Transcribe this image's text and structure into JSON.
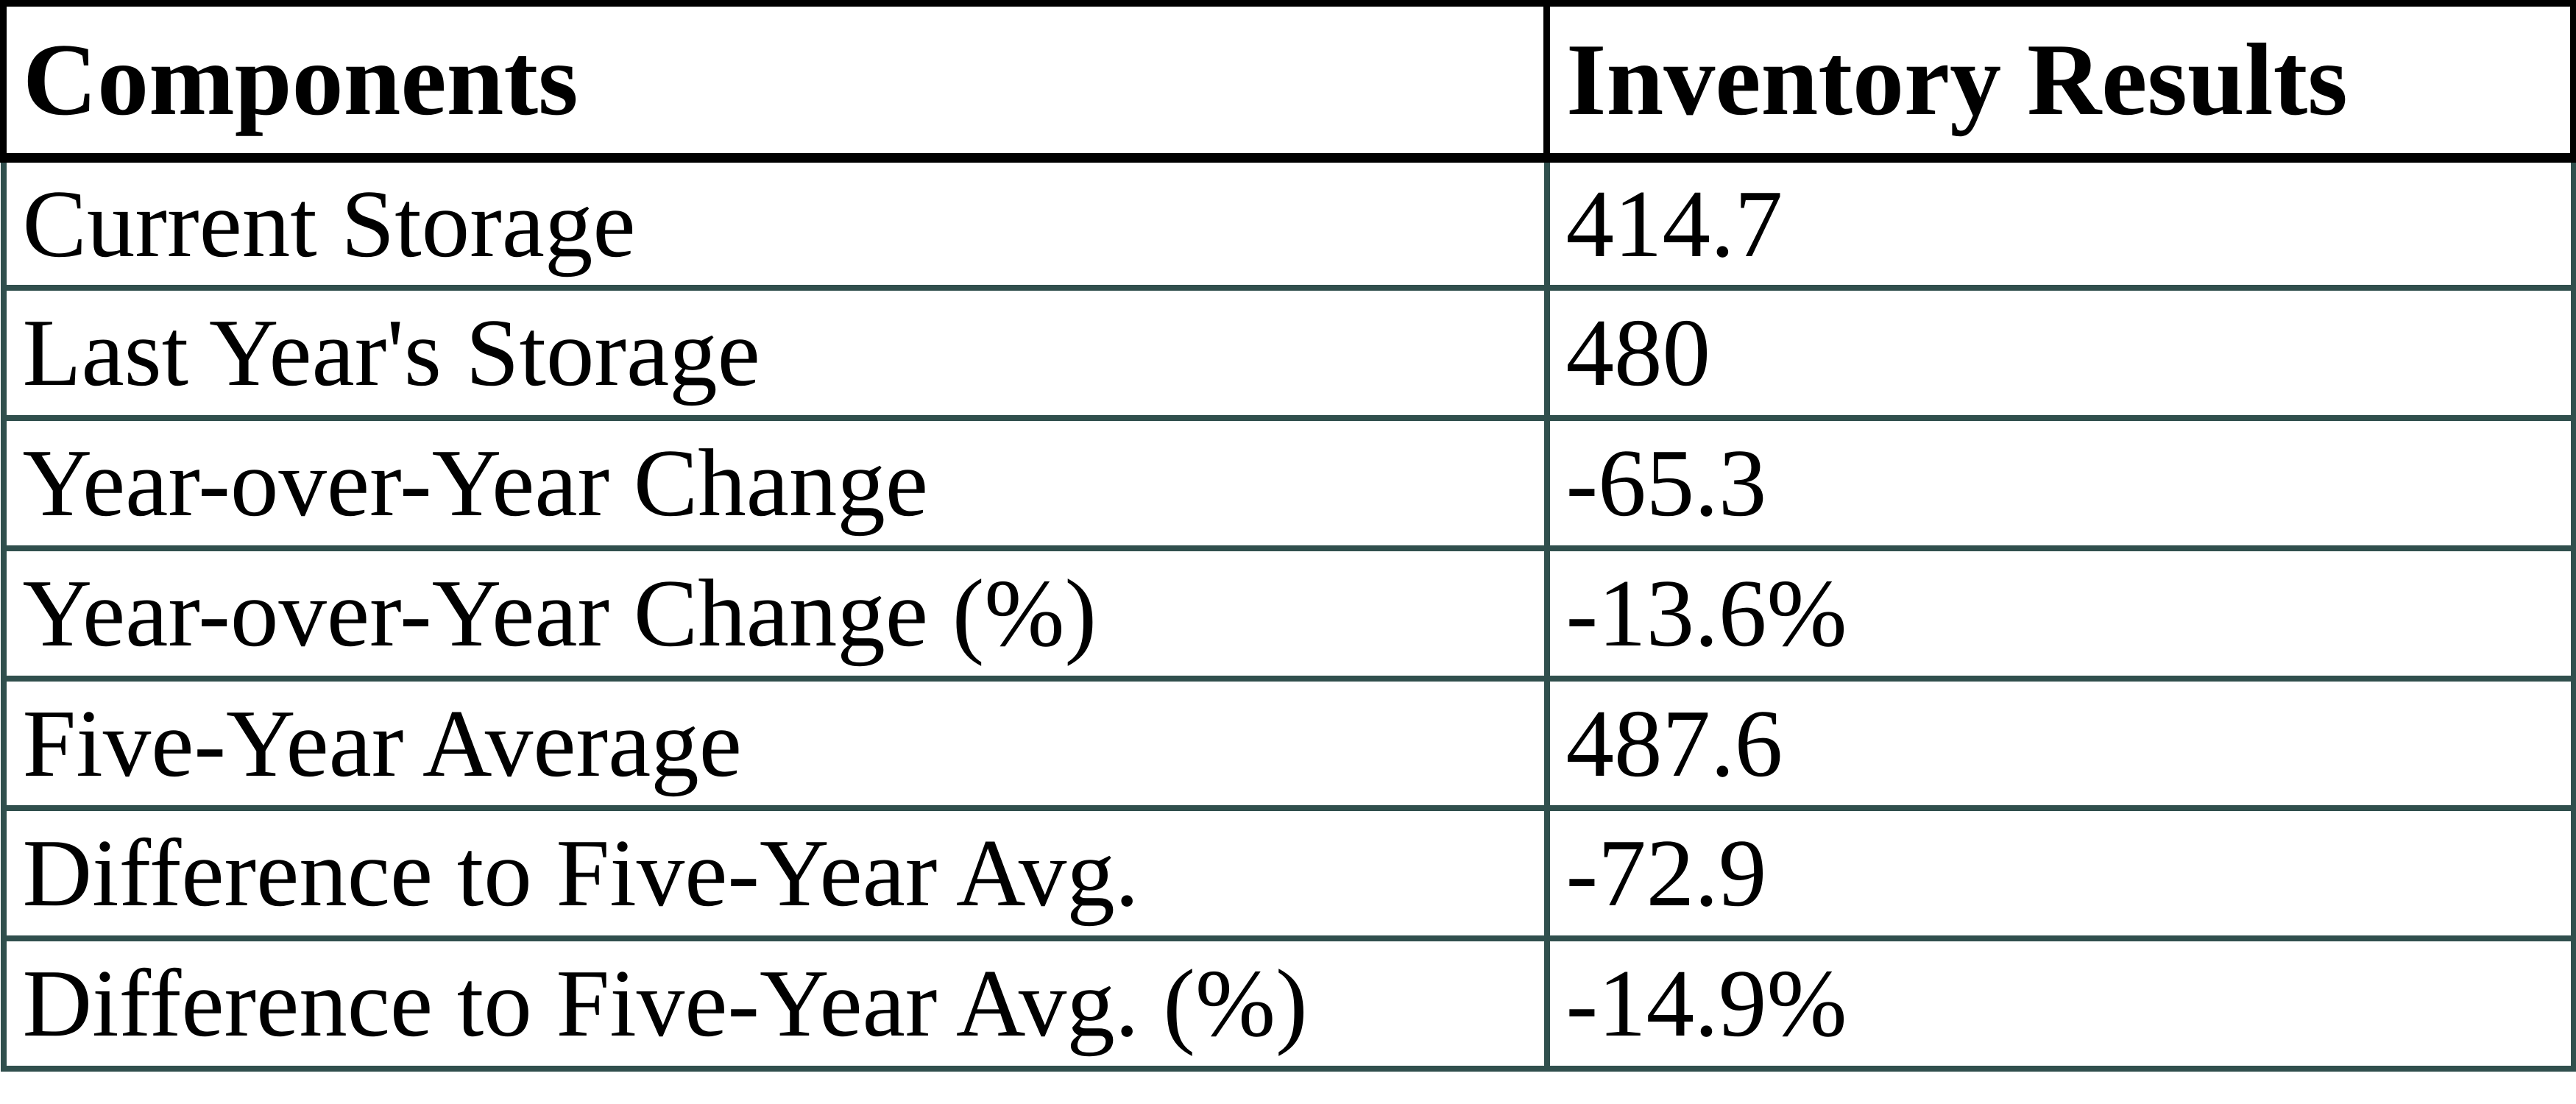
{
  "table": {
    "columns": [
      "Components",
      "Inventory Results"
    ],
    "rows": [
      {
        "component": "Current Storage",
        "value": "414.7"
      },
      {
        "component": "Last Year's Storage",
        "value": "480"
      },
      {
        "component": "Year-over-Year Change",
        "value": "-65.3"
      },
      {
        "component": "Year-over-Year Change (%)",
        "value": "-13.6%"
      },
      {
        "component": "Five-Year Average",
        "value": "487.6"
      },
      {
        "component": "Difference to Five-Year Avg.",
        "value": "-72.9"
      },
      {
        "component": "Difference to Five-Year Avg. (%)",
        "value": "-14.9%"
      }
    ]
  },
  "colors": {
    "header_border": "#000000",
    "row_border": "#304F4D",
    "text": "#000000",
    "background": "#FFFFFF"
  },
  "chart_data": {
    "type": "table",
    "title": "",
    "columns": [
      "Components",
      "Inventory Results"
    ],
    "rows": [
      [
        "Current Storage",
        "414.7"
      ],
      [
        "Last Year's Storage",
        "480"
      ],
      [
        "Year-over-Year Change",
        "-65.3"
      ],
      [
        "Year-over-Year Change (%)",
        "-13.6%"
      ],
      [
        "Five-Year Average",
        "487.6"
      ],
      [
        "Difference to Five-Year Avg.",
        "-72.9"
      ],
      [
        "Difference to Five-Year Avg. (%)",
        "-14.9%"
      ]
    ],
    "numeric_values": {
      "current_storage": 414.7,
      "last_year_storage": 480,
      "yoy_change": -65.3,
      "yoy_change_pct": -13.6,
      "five_year_average": 487.6,
      "diff_to_five_year_avg": -72.9,
      "diff_to_five_year_avg_pct": -14.9
    }
  }
}
